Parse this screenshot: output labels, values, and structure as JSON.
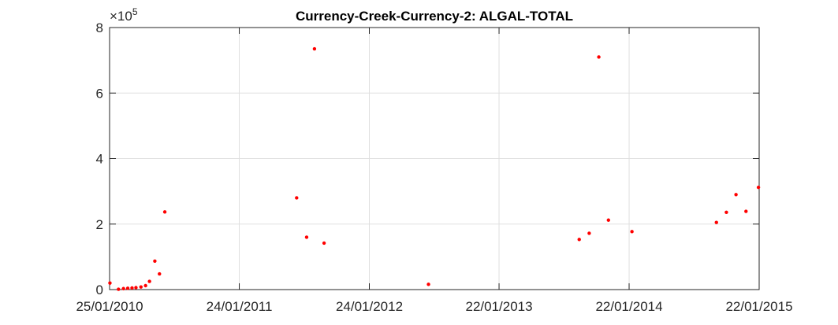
{
  "chart_data": {
    "type": "scatter",
    "title": "Currency-Creek-Currency-2: ALGAL-TOTAL",
    "xlabel": "",
    "ylabel": "",
    "y_multiplier": {
      "base": "×10",
      "exponent": "5"
    },
    "xlim": [
      "2010-01-25",
      "2015-01-22"
    ],
    "ylim": [
      0,
      800000
    ],
    "x_ticks": [
      {
        "date": "2010-01-25",
        "label": "25/01/2010"
      },
      {
        "date": "2011-01-24",
        "label": "24/01/2011"
      },
      {
        "date": "2012-01-24",
        "label": "24/01/2012"
      },
      {
        "date": "2013-01-22",
        "label": "22/01/2013"
      },
      {
        "date": "2014-01-22",
        "label": "22/01/2014"
      },
      {
        "date": "2015-01-22",
        "label": "22/01/2015"
      }
    ],
    "y_ticks": [
      {
        "value": 0,
        "label": "0"
      },
      {
        "value": 200000,
        "label": "2"
      },
      {
        "value": 400000,
        "label": "4"
      },
      {
        "value": 600000,
        "label": "6"
      },
      {
        "value": 800000,
        "label": "8"
      }
    ],
    "grid": true,
    "marker_color": "#ff0000",
    "series": [
      {
        "points": [
          {
            "x": "2010-01-26",
            "y": 20000
          },
          {
            "x": "2010-02-19",
            "y": 1000
          },
          {
            "x": "2010-03-05",
            "y": 3000
          },
          {
            "x": "2010-03-17",
            "y": 4000
          },
          {
            "x": "2010-03-29",
            "y": 5000
          },
          {
            "x": "2010-04-09",
            "y": 6000
          },
          {
            "x": "2010-04-23",
            "y": 8000
          },
          {
            "x": "2010-05-06",
            "y": 12000
          },
          {
            "x": "2010-05-17",
            "y": 25000
          },
          {
            "x": "2010-06-01",
            "y": 87000
          },
          {
            "x": "2010-06-14",
            "y": 48000
          },
          {
            "x": "2010-06-29",
            "y": 237000
          },
          {
            "x": "2011-07-04",
            "y": 280000
          },
          {
            "x": "2011-08-01",
            "y": 160000
          },
          {
            "x": "2011-08-23",
            "y": 735000
          },
          {
            "x": "2011-09-19",
            "y": 142000
          },
          {
            "x": "2012-07-08",
            "y": 16000
          },
          {
            "x": "2013-09-04",
            "y": 153000
          },
          {
            "x": "2013-10-02",
            "y": 172000
          },
          {
            "x": "2013-10-29",
            "y": 710000
          },
          {
            "x": "2013-11-25",
            "y": 212000
          },
          {
            "x": "2014-01-30",
            "y": 177000
          },
          {
            "x": "2014-09-24",
            "y": 205000
          },
          {
            "x": "2014-10-22",
            "y": 236000
          },
          {
            "x": "2014-11-18",
            "y": 290000
          },
          {
            "x": "2014-12-16",
            "y": 239000
          },
          {
            "x": "2015-01-20",
            "y": 312000
          }
        ]
      }
    ]
  }
}
